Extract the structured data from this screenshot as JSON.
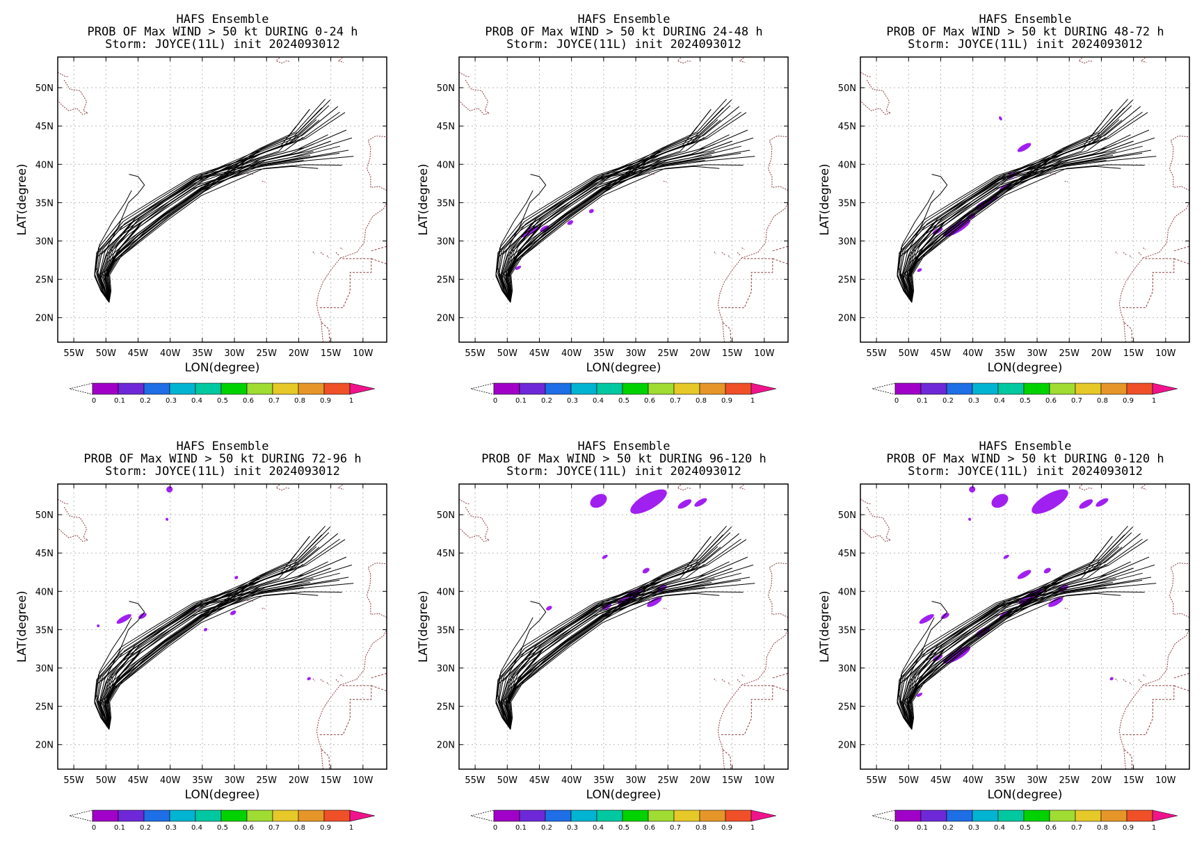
{
  "figure": {
    "panels": [
      {
        "header": "HAFS Ensemble",
        "subtitle": "PROB OF Max WIND > 50 kt DURING  0-24 h",
        "storm": "Storm: JOYCE(11L) init 2024093012",
        "blobs": []
      },
      {
        "header": "HAFS Ensemble",
        "subtitle": "PROB OF Max WIND > 50 kt DURING 24-48 h",
        "storm": "Storm: JOYCE(11L) init 2024093012",
        "blobs": [
          [
            -46.5,
            31.2,
            1.6,
            0.35
          ],
          [
            -44.2,
            31.6,
            0.8,
            0.3
          ],
          [
            -48.3,
            26.5,
            0.5,
            0.2
          ],
          [
            -40.2,
            32.4,
            0.5,
            0.25
          ],
          [
            -36.9,
            33.9,
            0.4,
            0.25
          ]
        ]
      },
      {
        "header": "HAFS Ensemble",
        "subtitle": "PROB OF Max WIND > 50 kt DURING 48-72 h",
        "storm": "Storm: JOYCE(11L) init 2024093012",
        "blobs": [
          [
            -32.0,
            42.2,
            1.2,
            0.35
          ],
          [
            -35.7,
            46.0,
            0.2,
            0.3
          ],
          [
            -42.5,
            31.7,
            2.4,
            0.6
          ],
          [
            -38.5,
            34.7,
            1.3,
            0.4
          ],
          [
            -37.0,
            35.4,
            1.0,
            0.3
          ],
          [
            -35.0,
            37.0,
            1.0,
            0.3
          ],
          [
            -34.0,
            38.5,
            0.8,
            0.3
          ],
          [
            -40.3,
            33.2,
            0.8,
            0.3
          ],
          [
            -45.5,
            31.3,
            0.9,
            0.3
          ],
          [
            -48.3,
            26.2,
            0.4,
            0.2
          ]
        ]
      },
      {
        "header": "HAFS Ensemble",
        "subtitle": "PROB OF Max WIND > 50 kt DURING 72-96 h",
        "storm": "Storm: JOYCE(11L) init 2024093012",
        "blobs": [
          [
            -40.1,
            53.3,
            0.5,
            0.4
          ],
          [
            -40.5,
            49.4,
            0.2,
            0.2
          ],
          [
            -47.2,
            36.4,
            1.3,
            0.35
          ],
          [
            -44.3,
            36.8,
            0.7,
            0.3
          ],
          [
            -51.2,
            35.5,
            0.2,
            0.2
          ],
          [
            -30.2,
            37.2,
            0.5,
            0.25
          ],
          [
            -29.7,
            41.8,
            0.3,
            0.2
          ],
          [
            -34.5,
            35.0,
            0.3,
            0.2
          ],
          [
            -36.3,
            37.8,
            0.4,
            0.2
          ],
          [
            -18.4,
            28.6,
            0.3,
            0.2
          ]
        ]
      },
      {
        "header": "HAFS Ensemble",
        "subtitle": "PROB OF Max WIND > 50 kt DURING 96-120 h",
        "storm": "Storm: JOYCE(11L) init 2024093012",
        "blobs": [
          [
            -28.0,
            51.7,
            3.2,
            1.0
          ],
          [
            -35.8,
            51.8,
            1.4,
            0.8
          ],
          [
            -22.4,
            51.4,
            1.2,
            0.4
          ],
          [
            -19.9,
            51.6,
            1.1,
            0.35
          ],
          [
            -30.9,
            39.3,
            2.2,
            0.5
          ],
          [
            -27.1,
            38.6,
            1.3,
            0.4
          ],
          [
            -25.9,
            40.4,
            0.8,
            0.35
          ],
          [
            -28.4,
            42.7,
            0.6,
            0.3
          ],
          [
            -34.8,
            44.5,
            0.5,
            0.2
          ],
          [
            -43.5,
            37.8,
            0.5,
            0.25
          ],
          [
            -34.5,
            38.0,
            0.8,
            0.3
          ]
        ]
      },
      {
        "header": "HAFS Ensemble",
        "subtitle": "PROB OF Max WIND > 50 kt DURING 0-120 h",
        "storm": "Storm: JOYCE(11L) init 2024093012",
        "blobs": [
          [
            -28.0,
            51.7,
            3.2,
            1.0
          ],
          [
            -35.8,
            51.8,
            1.4,
            0.8
          ],
          [
            -40.1,
            53.3,
            0.5,
            0.4
          ],
          [
            -22.4,
            51.4,
            1.2,
            0.4
          ],
          [
            -19.9,
            51.6,
            1.1,
            0.35
          ],
          [
            -47.2,
            36.4,
            1.3,
            0.35
          ],
          [
            -44.3,
            36.8,
            0.7,
            0.3
          ],
          [
            -42.5,
            31.7,
            2.4,
            0.6
          ],
          [
            -38.5,
            34.7,
            1.3,
            0.4
          ],
          [
            -35.0,
            37.0,
            1.0,
            0.3
          ],
          [
            -30.9,
            39.3,
            2.2,
            0.5
          ],
          [
            -27.1,
            38.6,
            1.3,
            0.4
          ],
          [
            -25.9,
            40.4,
            0.8,
            0.35
          ],
          [
            -32.0,
            42.2,
            1.2,
            0.35
          ],
          [
            -28.4,
            42.7,
            0.6,
            0.3
          ],
          [
            -45.5,
            31.3,
            0.9,
            0.3
          ],
          [
            -48.3,
            26.5,
            0.5,
            0.2
          ],
          [
            -34.8,
            44.5,
            0.5,
            0.2
          ],
          [
            -18.4,
            28.6,
            0.3,
            0.2
          ],
          [
            -40.5,
            49.4,
            0.2,
            0.2
          ]
        ]
      }
    ]
  },
  "map": {
    "lon_range": [
      -57.5,
      -6.3
    ],
    "lat_range": [
      16.8,
      54
    ],
    "lon_tick_labels": [
      "55W",
      "50W",
      "45W",
      "40W",
      "35W",
      "30W",
      "25W",
      "20W",
      "15W",
      "10W"
    ],
    "lat_tick_labels": [
      "20N",
      "25N",
      "30N",
      "35N",
      "40N",
      "45N",
      "50N"
    ],
    "xlabel": "LON(degree)",
    "ylabel": "LAT(degree)",
    "prob_color": "#a020f0",
    "track_color": "#000000",
    "coast_color": "#8b3a3a"
  },
  "colorbar": {
    "labels": [
      "0",
      "0.1",
      "0.2",
      "0.3",
      "0.4",
      "0.5",
      "0.6",
      "0.7",
      "0.8",
      "0.9",
      "1"
    ],
    "colors": [
      "#a000c8",
      "#6e28d8",
      "#1e6ee6",
      "#00b4d2",
      "#00c8a0",
      "#00d200",
      "#a0dc32",
      "#e6c828",
      "#e69628",
      "#f05028"
    ],
    "over_color": "#f0148c"
  }
}
